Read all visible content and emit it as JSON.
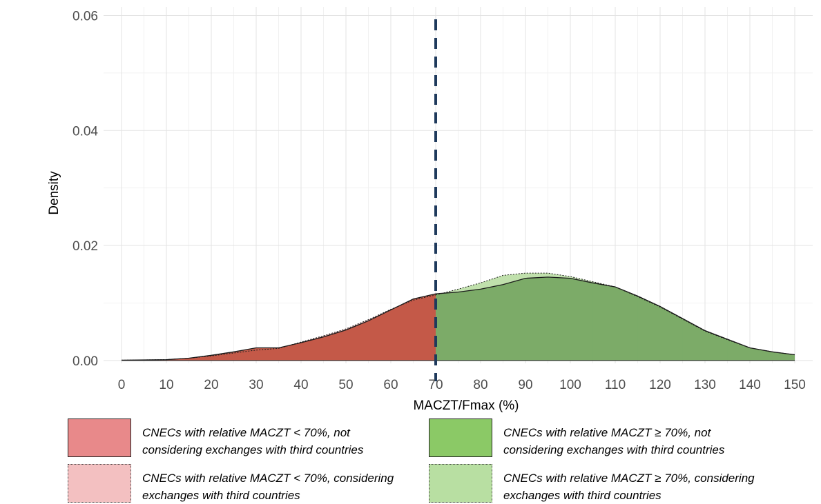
{
  "chart_data": {
    "type": "area",
    "title": "",
    "xlabel": "MACZT/Fmax (%)",
    "ylabel": "Density",
    "xlim": [
      -4,
      154
    ],
    "ylim": [
      -0.0005,
      0.0615
    ],
    "x_ticks": [
      0,
      10,
      20,
      30,
      40,
      50,
      60,
      70,
      80,
      90,
      100,
      110,
      120,
      130,
      140,
      150
    ],
    "y_ticks": [
      0.0,
      0.02,
      0.04,
      0.06
    ],
    "y_tick_labels": [
      "0.00",
      "0.02",
      "0.04",
      "0.06"
    ],
    "grid": true,
    "threshold_line": 70,
    "x": [
      0,
      5,
      10,
      15,
      20,
      25,
      30,
      35,
      40,
      45,
      50,
      55,
      60,
      65,
      70,
      75,
      80,
      85,
      90,
      95,
      100,
      105,
      110,
      115,
      120,
      125,
      130,
      135,
      140,
      145,
      150
    ],
    "series": [
      {
        "name": "CNECs with relative MACZT < 70%, not considering exchanges with third countries",
        "color": "#C0503E",
        "x_range": [
          0,
          70
        ],
        "values": [
          5e-05,
          0.0001,
          0.00015,
          0.0004,
          0.0009,
          0.0015,
          0.0022,
          0.0022,
          0.0031,
          0.0041,
          0.0053,
          0.0069,
          0.0088,
          0.0107,
          0.0116,
          0.0119,
          0.0124,
          0.0132,
          0.0143,
          0.0145,
          0.0143,
          0.0135,
          0.0128,
          0.0112,
          0.0094,
          0.0073,
          0.0052,
          0.0037,
          0.0022,
          0.0015,
          0.001
        ]
      },
      {
        "name": "CNECs with relative MACZT ≥ 70%, not considering exchanges with third countries",
        "color": "#6A9E58",
        "x_range": [
          70,
          150
        ],
        "values": [
          5e-05,
          0.0001,
          0.00015,
          0.0004,
          0.0009,
          0.0015,
          0.0022,
          0.0022,
          0.0031,
          0.0041,
          0.0053,
          0.0069,
          0.0088,
          0.0107,
          0.0116,
          0.0119,
          0.0124,
          0.0132,
          0.0143,
          0.0145,
          0.0143,
          0.0135,
          0.0128,
          0.0112,
          0.0094,
          0.0073,
          0.0052,
          0.0037,
          0.0022,
          0.0015,
          0.001
        ]
      },
      {
        "name": "CNECs with relative MACZT < 70%, considering exchanges with third countries",
        "color": "#F0BCBC",
        "x_range": [
          0,
          70
        ],
        "values": [
          5e-05,
          0.0001,
          0.00015,
          0.0004,
          0.0008,
          0.0013,
          0.0018,
          0.0021,
          0.0032,
          0.0043,
          0.0055,
          0.0071,
          0.0089,
          0.0105,
          0.0114,
          0.0124,
          0.0135,
          0.0148,
          0.0152,
          0.0152,
          0.0146,
          0.0137,
          0.0128,
          0.0111,
          0.0093,
          0.0072,
          0.0051,
          0.0036,
          0.0022,
          0.0015,
          0.001
        ]
      },
      {
        "name": "CNECs with relative MACZT ≥ 70%, considering exchanges with third countries",
        "color": "#B9DDA3",
        "x_range": [
          70,
          150
        ],
        "values": [
          5e-05,
          0.0001,
          0.00015,
          0.0004,
          0.0008,
          0.0013,
          0.0018,
          0.0021,
          0.0032,
          0.0043,
          0.0055,
          0.0071,
          0.0089,
          0.0105,
          0.0114,
          0.0124,
          0.0135,
          0.0148,
          0.0152,
          0.0152,
          0.0146,
          0.0137,
          0.0128,
          0.0111,
          0.0093,
          0.0072,
          0.0051,
          0.0036,
          0.0022,
          0.0015,
          0.001
        ]
      }
    ],
    "legend": [
      {
        "label_line1": "CNECs with relative MACZT < 70%, not",
        "label_line2": "considering exchanges with third countries",
        "fill": "#E8898A",
        "border": "solid"
      },
      {
        "label_line1": "CNECs with relative MACZT ≥ 70%, not",
        "label_line2": "considering exchanges with third countries",
        "fill": "#8BC966",
        "border": "solid"
      },
      {
        "label_line1": "CNECs with relative MACZT < 70%, considering",
        "label_line2": "exchanges with third countries",
        "fill": "#F3C0C1",
        "border": "dotted"
      },
      {
        "label_line1": "CNECs with relative MACZT ≥ 70%, considering",
        "label_line2": "exchanges with third countries",
        "fill": "#B8DFA2",
        "border": "dotted"
      }
    ],
    "legend_position": "bottom"
  }
}
